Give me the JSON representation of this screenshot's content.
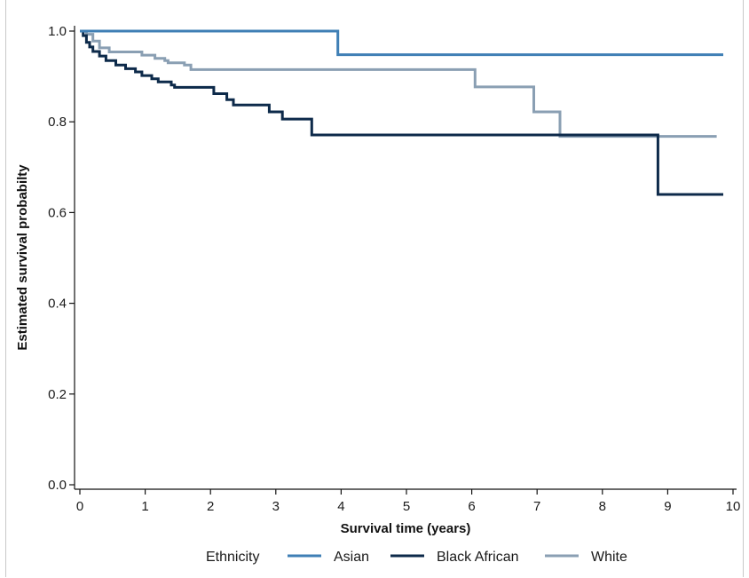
{
  "chart_data": {
    "type": "line",
    "step": true,
    "title": "",
    "xlabel": "Survival time (years)",
    "ylabel": "Estimated survival probabilty",
    "xlim": [
      0,
      10
    ],
    "ylim": [
      0,
      1
    ],
    "xticks": [
      "0",
      "1",
      "2",
      "3",
      "4",
      "5",
      "6",
      "7",
      "8",
      "9",
      "10"
    ],
    "yticks": [
      "0.0",
      "0.2",
      "0.4",
      "0.6",
      "0.8",
      "1.0"
    ],
    "grid": false,
    "legend": {
      "title": "Ethnicity",
      "placement": "bottom",
      "labels": [
        "Asian",
        "Black African",
        "White"
      ]
    },
    "series": [
      {
        "name": "Asian",
        "color": "#3f7fb5",
        "points": [
          [
            0,
            1.0
          ],
          [
            3.95,
            1.0
          ],
          [
            3.95,
            0.948
          ],
          [
            9.85,
            0.948
          ]
        ]
      },
      {
        "name": "Black African",
        "color": "#0d2a4a",
        "points": [
          [
            0,
            1.0
          ],
          [
            0.05,
            1.0
          ],
          [
            0.05,
            0.99
          ],
          [
            0.1,
            0.99
          ],
          [
            0.1,
            0.975
          ],
          [
            0.15,
            0.975
          ],
          [
            0.15,
            0.965
          ],
          [
            0.2,
            0.965
          ],
          [
            0.2,
            0.955
          ],
          [
            0.3,
            0.955
          ],
          [
            0.3,
            0.945
          ],
          [
            0.4,
            0.945
          ],
          [
            0.4,
            0.935
          ],
          [
            0.55,
            0.935
          ],
          [
            0.55,
            0.925
          ],
          [
            0.7,
            0.925
          ],
          [
            0.7,
            0.917
          ],
          [
            0.85,
            0.917
          ],
          [
            0.85,
            0.91
          ],
          [
            0.95,
            0.91
          ],
          [
            0.95,
            0.902
          ],
          [
            1.1,
            0.902
          ],
          [
            1.1,
            0.895
          ],
          [
            1.2,
            0.895
          ],
          [
            1.2,
            0.888
          ],
          [
            1.4,
            0.888
          ],
          [
            1.4,
            0.881
          ],
          [
            1.45,
            0.881
          ],
          [
            1.45,
            0.876
          ],
          [
            2.05,
            0.876
          ],
          [
            2.05,
            0.862
          ],
          [
            2.25,
            0.862
          ],
          [
            2.25,
            0.849
          ],
          [
            2.35,
            0.849
          ],
          [
            2.35,
            0.837
          ],
          [
            2.9,
            0.837
          ],
          [
            2.9,
            0.822
          ],
          [
            3.1,
            0.822
          ],
          [
            3.1,
            0.806
          ],
          [
            3.55,
            0.806
          ],
          [
            3.55,
            0.771
          ],
          [
            8.85,
            0.771
          ],
          [
            8.85,
            0.64
          ],
          [
            9.85,
            0.64
          ]
        ]
      },
      {
        "name": "White",
        "color": "#8a9fb3",
        "points": [
          [
            0,
            1.0
          ],
          [
            0.1,
            1.0
          ],
          [
            0.1,
            0.993
          ],
          [
            0.2,
            0.993
          ],
          [
            0.2,
            0.978
          ],
          [
            0.3,
            0.978
          ],
          [
            0.3,
            0.963
          ],
          [
            0.45,
            0.963
          ],
          [
            0.45,
            0.954
          ],
          [
            0.95,
            0.954
          ],
          [
            0.95,
            0.947
          ],
          [
            1.15,
            0.947
          ],
          [
            1.15,
            0.94
          ],
          [
            1.3,
            0.94
          ],
          [
            1.3,
            0.935
          ],
          [
            1.35,
            0.935
          ],
          [
            1.35,
            0.93
          ],
          [
            1.6,
            0.93
          ],
          [
            1.6,
            0.925
          ],
          [
            1.7,
            0.925
          ],
          [
            1.7,
            0.915
          ],
          [
            6.05,
            0.915
          ],
          [
            6.05,
            0.877
          ],
          [
            6.95,
            0.877
          ],
          [
            6.95,
            0.822
          ],
          [
            7.35,
            0.822
          ],
          [
            7.35,
            0.768
          ],
          [
            9.75,
            0.768
          ]
        ]
      }
    ]
  }
}
